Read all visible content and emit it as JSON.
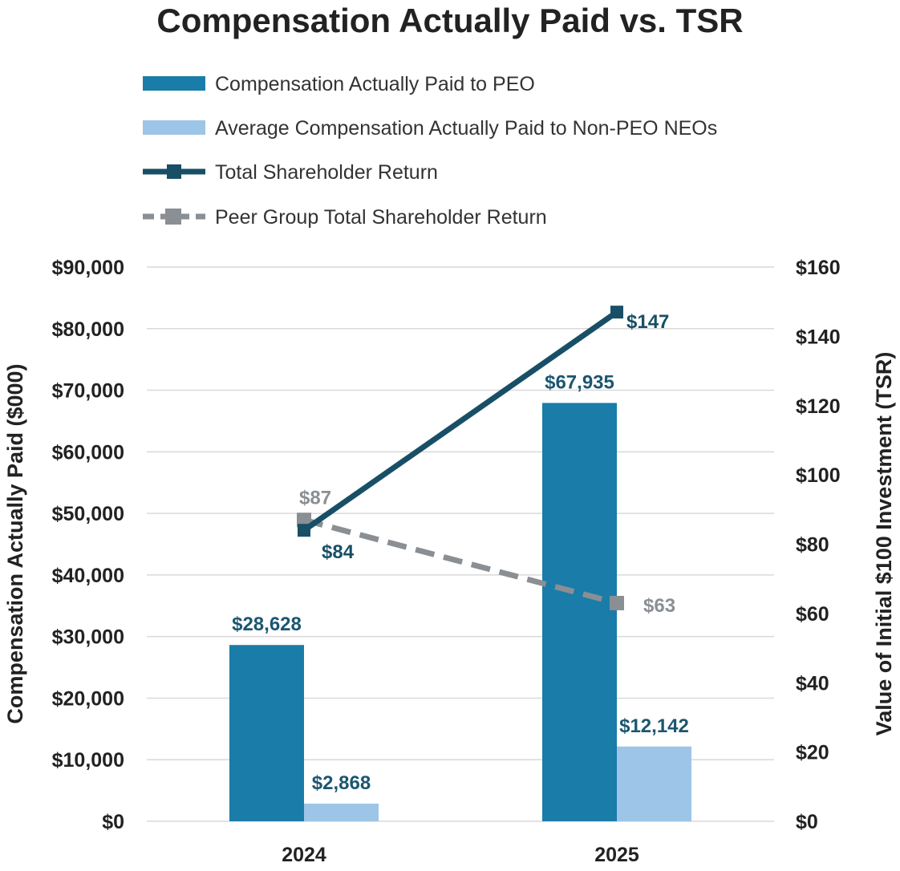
{
  "chart_data": {
    "type": "bar",
    "title": "Compensation Actually Paid vs. TSR",
    "categories": [
      "2024",
      "2025"
    ],
    "ylabel": "Compensation Actually Paid ($000)",
    "ylabel_right": "Value of Initial $100 Investment (TSR)",
    "ylim": [
      0,
      90000
    ],
    "ylim_right": [
      0,
      160
    ],
    "y_ticks": [
      "$0",
      "$10,000",
      "$20,000",
      "$30,000",
      "$40,000",
      "$50,000",
      "$60,000",
      "$70,000",
      "$80,000",
      "$90,000"
    ],
    "y_ticks_right": [
      "$0",
      "$20",
      "$40",
      "$60",
      "$80",
      "$100",
      "$120",
      "$140",
      "$160"
    ],
    "grid": true,
    "legend_position": "top",
    "series": [
      {
        "name": "Compensation Actually Paid to PEO",
        "kind": "bar",
        "axis": "left",
        "values": [
          28628,
          67935
        ],
        "labels": [
          "$28,628",
          "$67,935"
        ],
        "color": "#1a7ca8"
      },
      {
        "name": "Average Compensation Actually Paid to Non-PEO NEOs",
        "kind": "bar",
        "axis": "left",
        "values": [
          2868,
          12142
        ],
        "labels": [
          "$2,868",
          "$12,142"
        ],
        "color": "#9dc5e7"
      },
      {
        "name": "Total Shareholder Return",
        "kind": "line",
        "axis": "right",
        "values": [
          84,
          147
        ],
        "labels": [
          "$84",
          "$147"
        ],
        "color": "#184f66"
      },
      {
        "name": "Peer Group Total Shareholder Return",
        "kind": "dashed-line",
        "axis": "right",
        "values": [
          87,
          63
        ],
        "labels": [
          "$87",
          "$63"
        ],
        "color": "#8a8f94"
      }
    ],
    "label_colors": {
      "bar": "#1c5670",
      "tsr": "#184f66",
      "peer": "#8a8f94"
    },
    "grid_color": "#d9d9d9"
  }
}
